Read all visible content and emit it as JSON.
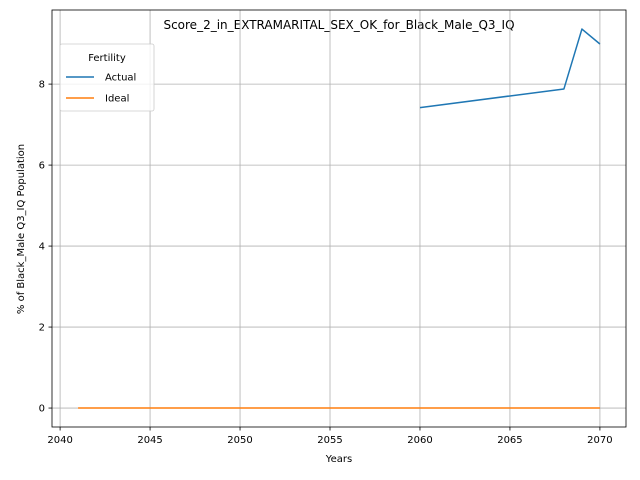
{
  "chart_data": {
    "type": "line",
    "title": "Score_2_in_EXTRAMARITAL_SEX_OK_for_Black_Male_Q3_IQ",
    "xlabel": "Years",
    "ylabel": "% of Black_Male Q3_IQ Population",
    "xlim": [
      2039.55,
      2071.45
    ],
    "ylim": [
      -0.468,
      9.83
    ],
    "xticks": [
      2040,
      2045,
      2050,
      2055,
      2060,
      2065,
      2070
    ],
    "yticks": [
      0,
      2,
      4,
      6,
      8
    ],
    "grid": true,
    "legend": {
      "title": "Fertility",
      "placement": "top-left"
    },
    "series": [
      {
        "name": "Actual",
        "color": "#1f77b4",
        "x": [
          2060,
          2068,
          2069,
          2070
        ],
        "y": [
          7.42,
          7.88,
          9.36,
          8.99
        ]
      },
      {
        "name": "Ideal",
        "color": "#ff7f0e",
        "x": [
          2041,
          2070
        ],
        "y": [
          0,
          0
        ]
      }
    ]
  }
}
